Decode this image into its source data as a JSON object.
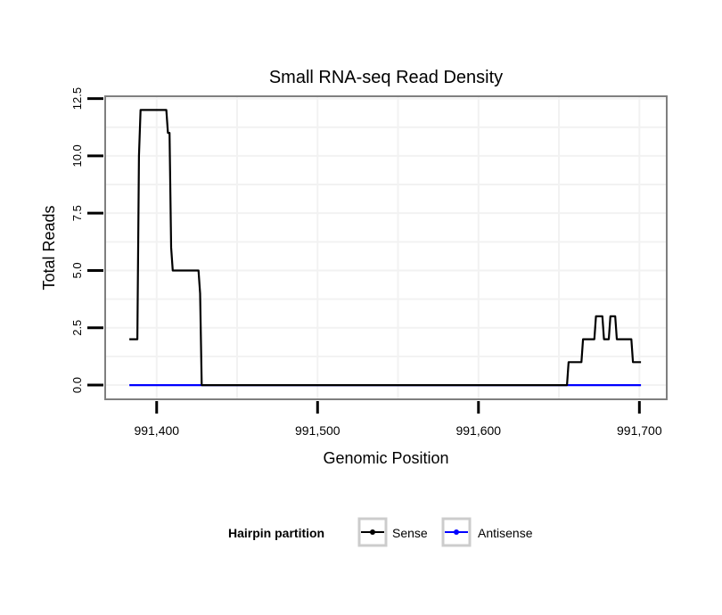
{
  "chart_data": {
    "type": "line",
    "title": "Small RNA-seq Read Density",
    "xlabel": "Genomic Position",
    "ylabel": "Total Reads",
    "xlim": [
      991368,
      991717
    ],
    "ylim": [
      -0.62,
      12.6
    ],
    "x_ticks": [
      991400,
      991500,
      991600,
      991700
    ],
    "x_tick_labels": [
      "991,400",
      "991,500",
      "991,600",
      "991,700"
    ],
    "y_ticks": [
      0,
      2.5,
      5,
      7.5,
      10,
      12.5
    ],
    "y_tick_labels": [
      "0.0",
      "2.5",
      "5.0",
      "7.5",
      "10.0",
      "12.5"
    ],
    "grid": true,
    "legend": {
      "title": "Hairpin partition",
      "placement": "bottom",
      "entries": [
        "Sense",
        "Antisense"
      ]
    },
    "series": [
      {
        "name": "Sense",
        "color": "#000000",
        "points": [
          [
            991383,
            2
          ],
          [
            991388,
            2
          ],
          [
            991389,
            10
          ],
          [
            991390,
            12
          ],
          [
            991406,
            12
          ],
          [
            991407,
            11
          ],
          [
            991408,
            11
          ],
          [
            991409,
            6
          ],
          [
            991410,
            5
          ],
          [
            991426,
            5
          ],
          [
            991427,
            4
          ],
          [
            991428,
            0
          ],
          [
            991655,
            0
          ],
          [
            991656,
            1
          ],
          [
            991664,
            1
          ],
          [
            991665,
            2
          ],
          [
            991672,
            2
          ],
          [
            991673,
            3
          ],
          [
            991677,
            3
          ],
          [
            991678,
            2
          ],
          [
            991681,
            2
          ],
          [
            991682,
            3
          ],
          [
            991685,
            3
          ],
          [
            991686,
            2
          ],
          [
            991695,
            2
          ],
          [
            991696,
            1
          ],
          [
            991701,
            1
          ]
        ]
      },
      {
        "name": "Antisense",
        "color": "#0000ff",
        "points": [
          [
            991383,
            0
          ],
          [
            991701,
            0
          ]
        ]
      }
    ]
  }
}
